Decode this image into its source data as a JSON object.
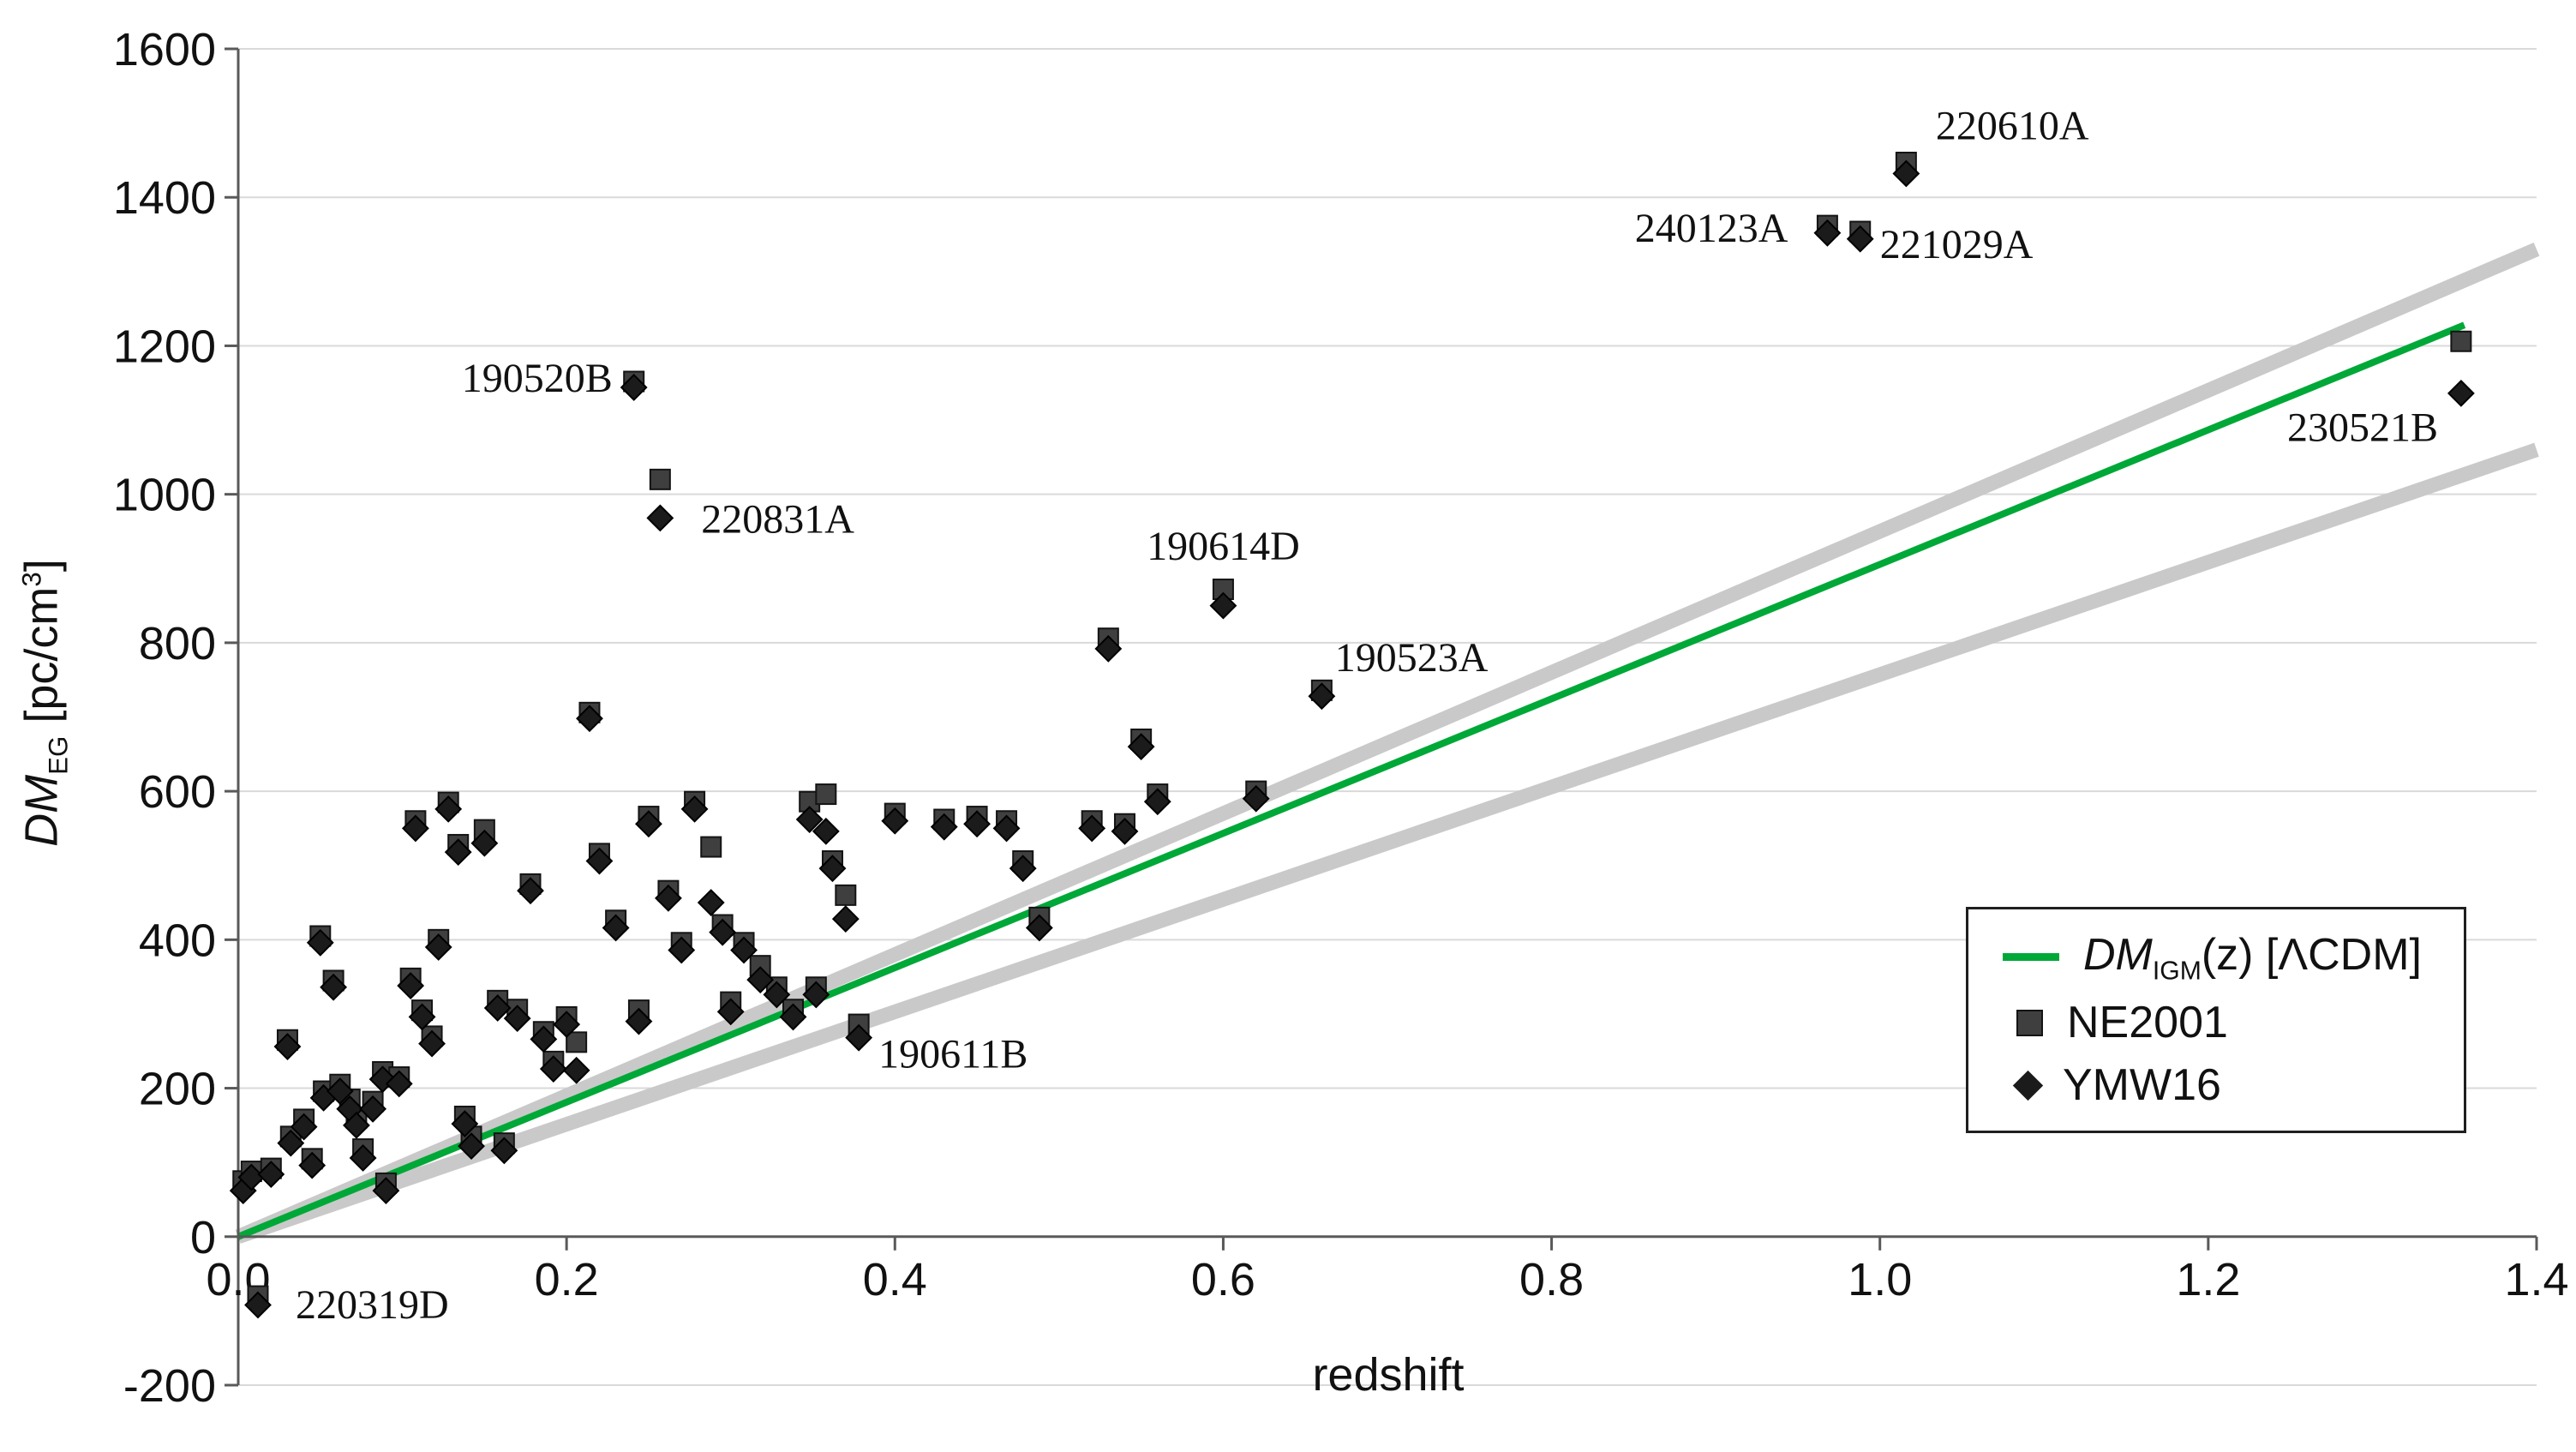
{
  "labels": {
    "y_dm": "DM",
    "y_sub": "EG",
    "y_unit_pre": " [pc/cm",
    "y_sup": "3",
    "y_unit_post": "]"
  },
  "legend": {
    "items": [
      {
        "dm": "DM",
        "sub": "IGM",
        "rest": "(z) [ΛCDM]"
      },
      {
        "label": "NE2001"
      },
      {
        "label": "YMW16"
      }
    ]
  },
  "chart_data": {
    "type": "scatter",
    "title": "",
    "xlabel": "redshift",
    "ylabel": "DM_EG [pc/cm^3]",
    "xlim": [
      0,
      1.4
    ],
    "ylim": [
      -200,
      1600
    ],
    "x_ticks": [
      "0.0",
      "0.2",
      "0.4",
      "0.6",
      "0.8",
      "1.0",
      "1.2",
      "1.4"
    ],
    "y_ticks": [
      "-200",
      "0",
      "200",
      "400",
      "600",
      "800",
      "1000",
      "1200",
      "1400",
      "1600"
    ],
    "grid": "horizontal",
    "legend_position": "right-middle",
    "style": {
      "grid_color": "#d9d9d9",
      "axis_color": "#595959",
      "text_color": "#111111"
    },
    "lines": [
      {
        "name": "scatter-envelope-upper",
        "color": "#c9c9c9",
        "width": 17,
        "points": [
          [
            0,
            0
          ],
          [
            1.4,
            1330
          ]
        ]
      },
      {
        "name": "scatter-envelope-lower",
        "color": "#c9c9c9",
        "width": 17,
        "points": [
          [
            0,
            0
          ],
          [
            1.4,
            1060
          ]
        ]
      },
      {
        "name": "dm-igm-lcdm",
        "label": "DM_IGM(z) [LCDM]",
        "color": "#00a838",
        "width": 8,
        "points": [
          [
            0,
            0
          ],
          [
            1.356,
            1228
          ]
        ]
      }
    ],
    "series": [
      {
        "name": "NE2001",
        "marker": "square",
        "color": "#3f3f3f",
        "edge": "#141414",
        "points": [
          [
            0.003,
            75
          ],
          [
            0.008,
            88
          ],
          [
            0.012,
            -80
          ],
          [
            0.02,
            92
          ],
          [
            0.03,
            265
          ],
          [
            0.032,
            135
          ],
          [
            0.04,
            158
          ],
          [
            0.045,
            105
          ],
          [
            0.05,
            405
          ],
          [
            0.052,
            196
          ],
          [
            0.058,
            345
          ],
          [
            0.062,
            205
          ],
          [
            0.068,
            185
          ],
          [
            0.072,
            160
          ],
          [
            0.076,
            118
          ],
          [
            0.082,
            182
          ],
          [
            0.088,
            222
          ],
          [
            0.09,
            72
          ],
          [
            0.098,
            215
          ],
          [
            0.105,
            348
          ],
          [
            0.108,
            560
          ],
          [
            0.112,
            305
          ],
          [
            0.118,
            270
          ],
          [
            0.122,
            400
          ],
          [
            0.128,
            585
          ],
          [
            0.134,
            528
          ],
          [
            0.138,
            162
          ],
          [
            0.142,
            135
          ],
          [
            0.15,
            548
          ],
          [
            0.158,
            318
          ],
          [
            0.162,
            126
          ],
          [
            0.17,
            306
          ],
          [
            0.178,
            475
          ],
          [
            0.186,
            276
          ],
          [
            0.192,
            236
          ],
          [
            0.2,
            296
          ],
          [
            0.206,
            262
          ],
          [
            0.214,
            706
          ],
          [
            0.22,
            516
          ],
          [
            0.23,
            426
          ],
          [
            0.241,
            1152
          ],
          [
            0.244,
            305
          ],
          [
            0.25,
            566
          ],
          [
            0.257,
            1020
          ],
          [
            0.262,
            466
          ],
          [
            0.27,
            396
          ],
          [
            0.278,
            586
          ],
          [
            0.288,
            525
          ],
          [
            0.295,
            420
          ],
          [
            0.3,
            316
          ],
          [
            0.308,
            396
          ],
          [
            0.318,
            365
          ],
          [
            0.328,
            336
          ],
          [
            0.338,
            306
          ],
          [
            0.348,
            586
          ],
          [
            0.352,
            336
          ],
          [
            0.358,
            596
          ],
          [
            0.362,
            506
          ],
          [
            0.37,
            460
          ],
          [
            0.378,
            286
          ],
          [
            0.4,
            570
          ],
          [
            0.43,
            562
          ],
          [
            0.45,
            566
          ],
          [
            0.468,
            560
          ],
          [
            0.478,
            506
          ],
          [
            0.488,
            430
          ],
          [
            0.52,
            560
          ],
          [
            0.53,
            806
          ],
          [
            0.54,
            556
          ],
          [
            0.55,
            670
          ],
          [
            0.56,
            596
          ],
          [
            0.6,
            872
          ],
          [
            0.62,
            600
          ],
          [
            0.66,
            736
          ],
          [
            0.968,
            1362
          ],
          [
            0.988,
            1354
          ],
          [
            1.016,
            1447
          ],
          [
            1.354,
            1206
          ]
        ]
      },
      {
        "name": "YMW16",
        "marker": "diamond",
        "color": "#1b1b1b",
        "edge": "#000000",
        "points": [
          [
            0.003,
            62
          ],
          [
            0.008,
            80
          ],
          [
            0.012,
            -92
          ],
          [
            0.02,
            84
          ],
          [
            0.03,
            256
          ],
          [
            0.032,
            126
          ],
          [
            0.04,
            148
          ],
          [
            0.045,
            96
          ],
          [
            0.05,
            396
          ],
          [
            0.052,
            187
          ],
          [
            0.058,
            336
          ],
          [
            0.062,
            196
          ],
          [
            0.068,
            172
          ],
          [
            0.072,
            150
          ],
          [
            0.076,
            106
          ],
          [
            0.082,
            172
          ],
          [
            0.088,
            212
          ],
          [
            0.09,
            62
          ],
          [
            0.098,
            206
          ],
          [
            0.105,
            338
          ],
          [
            0.108,
            550
          ],
          [
            0.112,
            296
          ],
          [
            0.118,
            260
          ],
          [
            0.122,
            390
          ],
          [
            0.128,
            576
          ],
          [
            0.134,
            518
          ],
          [
            0.138,
            152
          ],
          [
            0.142,
            122
          ],
          [
            0.15,
            530
          ],
          [
            0.158,
            308
          ],
          [
            0.162,
            116
          ],
          [
            0.17,
            294
          ],
          [
            0.178,
            466
          ],
          [
            0.186,
            266
          ],
          [
            0.192,
            226
          ],
          [
            0.2,
            286
          ],
          [
            0.206,
            224
          ],
          [
            0.214,
            698
          ],
          [
            0.22,
            506
          ],
          [
            0.23,
            416
          ],
          [
            0.241,
            1144
          ],
          [
            0.244,
            290
          ],
          [
            0.25,
            556
          ],
          [
            0.257,
            968
          ],
          [
            0.262,
            456
          ],
          [
            0.27,
            386
          ],
          [
            0.278,
            576
          ],
          [
            0.288,
            450
          ],
          [
            0.295,
            410
          ],
          [
            0.3,
            303
          ],
          [
            0.308,
            386
          ],
          [
            0.318,
            346
          ],
          [
            0.328,
            326
          ],
          [
            0.338,
            296
          ],
          [
            0.348,
            562
          ],
          [
            0.352,
            326
          ],
          [
            0.358,
            546
          ],
          [
            0.362,
            496
          ],
          [
            0.37,
            428
          ],
          [
            0.378,
            268
          ],
          [
            0.4,
            560
          ],
          [
            0.43,
            552
          ],
          [
            0.45,
            556
          ],
          [
            0.468,
            550
          ],
          [
            0.478,
            496
          ],
          [
            0.488,
            416
          ],
          [
            0.52,
            550
          ],
          [
            0.53,
            792
          ],
          [
            0.54,
            546
          ],
          [
            0.55,
            660
          ],
          [
            0.56,
            586
          ],
          [
            0.6,
            850
          ],
          [
            0.62,
            590
          ],
          [
            0.66,
            728
          ],
          [
            0.968,
            1352
          ],
          [
            0.988,
            1344
          ],
          [
            1.016,
            1432
          ],
          [
            1.354,
            1136
          ]
        ]
      }
    ],
    "annotations": [
      {
        "text": "220319D",
        "x": 0.035,
        "y": -110,
        "anchor": "start"
      },
      {
        "text": "190520B",
        "x": 0.228,
        "y": 1138,
        "anchor": "end"
      },
      {
        "text": "220831A",
        "x": 0.282,
        "y": 948,
        "anchor": "start"
      },
      {
        "text": "190614D",
        "x": 0.6,
        "y": 912,
        "anchor": "middle"
      },
      {
        "text": "190523A",
        "x": 0.668,
        "y": 762,
        "anchor": "start"
      },
      {
        "text": "190611B",
        "x": 0.39,
        "y": 228,
        "anchor": "start"
      },
      {
        "text": "240123A",
        "x": 0.944,
        "y": 1340,
        "anchor": "end"
      },
      {
        "text": "221029A",
        "x": 1.0,
        "y": 1318,
        "anchor": "start"
      },
      {
        "text": "220610A",
        "x": 1.034,
        "y": 1478,
        "anchor": "start"
      },
      {
        "text": "230521B",
        "x": 1.34,
        "y": 1072,
        "anchor": "end"
      }
    ]
  }
}
